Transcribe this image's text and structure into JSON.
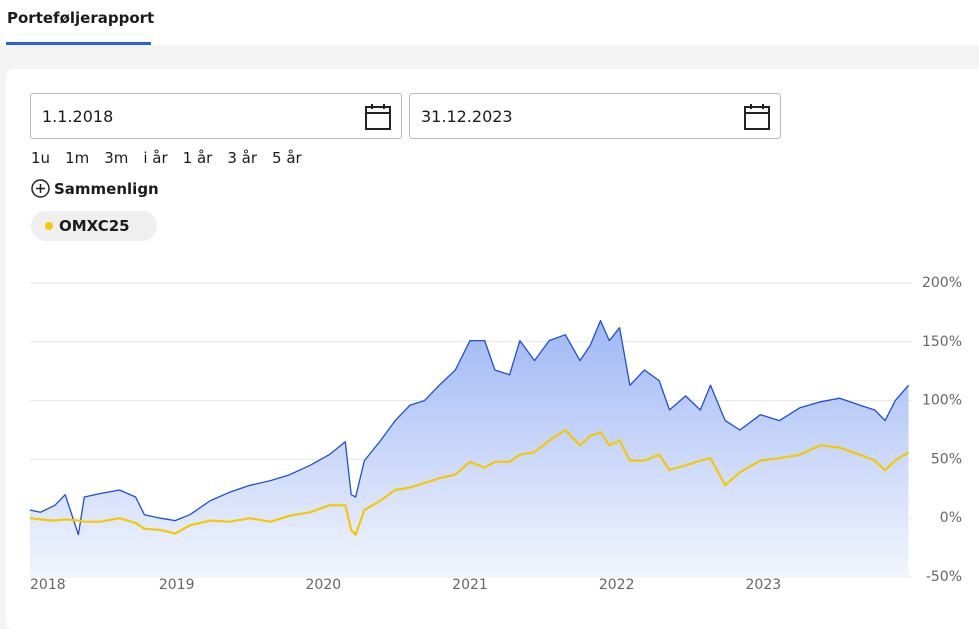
{
  "tab": "Porteføljerapport",
  "date_from": "1.1.2018",
  "date_to": "31.12.2023",
  "ranges": [
    "1u",
    "1m",
    "3m",
    "i år",
    "1 år",
    "3 år",
    "5 år"
  ],
  "compare": "Sammenlign",
  "chart_data": {
    "type": "line",
    "x": [
      2018.0,
      2018.07,
      2018.17,
      2018.24,
      2018.33,
      2018.37,
      2018.48,
      2018.61,
      2018.72,
      2018.78,
      2018.89,
      2018.99,
      2019.09,
      2019.23,
      2019.36,
      2019.5,
      2019.64,
      2019.77,
      2019.91,
      2020.04,
      2020.15,
      2020.19,
      2020.22,
      2020.28,
      2020.39,
      2020.49,
      2020.59,
      2020.69,
      2020.79,
      2020.9,
      2021.0,
      2021.1,
      2021.17,
      2021.27,
      2021.34,
      2021.44,
      2021.54,
      2021.65,
      2021.75,
      2021.82,
      2021.89,
      2021.95,
      2022.02,
      2022.09,
      2022.19,
      2022.29,
      2022.36,
      2022.47,
      2022.57,
      2022.64,
      2022.74,
      2022.84,
      2022.98,
      2023.11,
      2023.25,
      2023.39,
      2023.52,
      2023.66,
      2023.76,
      2023.83,
      2023.9,
      2023.99
    ],
    "series": [
      {
        "color": "#1d4fd8",
        "fill": true,
        "values": [
          7,
          5,
          11,
          20,
          -14,
          18,
          21,
          24,
          18,
          3,
          0,
          -2,
          3,
          15,
          22,
          28,
          32,
          37,
          45,
          54,
          65,
          20,
          18,
          49,
          66,
          83,
          96,
          100,
          113,
          126,
          151,
          151,
          126,
          122,
          151,
          134,
          151,
          156,
          134,
          147,
          168,
          151,
          162,
          113,
          126,
          117,
          92,
          104,
          92,
          113,
          83,
          75,
          88,
          83,
          94,
          99,
          102,
          96,
          92,
          83,
          100,
          113
        ]
      },
      {
        "name": "OMXC25",
        "color": "#f5c800",
        "values": [
          0,
          -1,
          -2,
          -1,
          -2,
          -3,
          -3,
          0,
          -4,
          -9,
          -10,
          -13,
          -6,
          -2,
          -3,
          0,
          -3,
          2,
          5,
          11,
          11,
          -10,
          -14,
          7,
          15,
          24,
          26,
          30,
          34,
          37,
          48,
          43,
          48,
          48,
          54,
          56,
          66,
          75,
          62,
          70,
          73,
          62,
          66,
          49,
          49,
          54,
          41,
          45,
          49,
          51,
          28,
          39,
          49,
          51,
          54,
          62,
          60,
          54,
          49,
          41,
          49,
          56
        ]
      }
    ],
    "xlim": [
      2018,
      2024
    ],
    "xticks": [
      2018,
      2019,
      2020,
      2021,
      2022,
      2023
    ],
    "ylim": [
      -50,
      200
    ],
    "yticks": [
      {
        "value": -50,
        "label": "-50%"
      },
      {
        "value": 0,
        "label": "0%"
      },
      {
        "value": 50,
        "label": "50%"
      },
      {
        "value": 100,
        "label": "100%"
      },
      {
        "value": 150,
        "label": "150%"
      },
      {
        "value": 200,
        "label": "200%"
      }
    ],
    "grid": true
  }
}
